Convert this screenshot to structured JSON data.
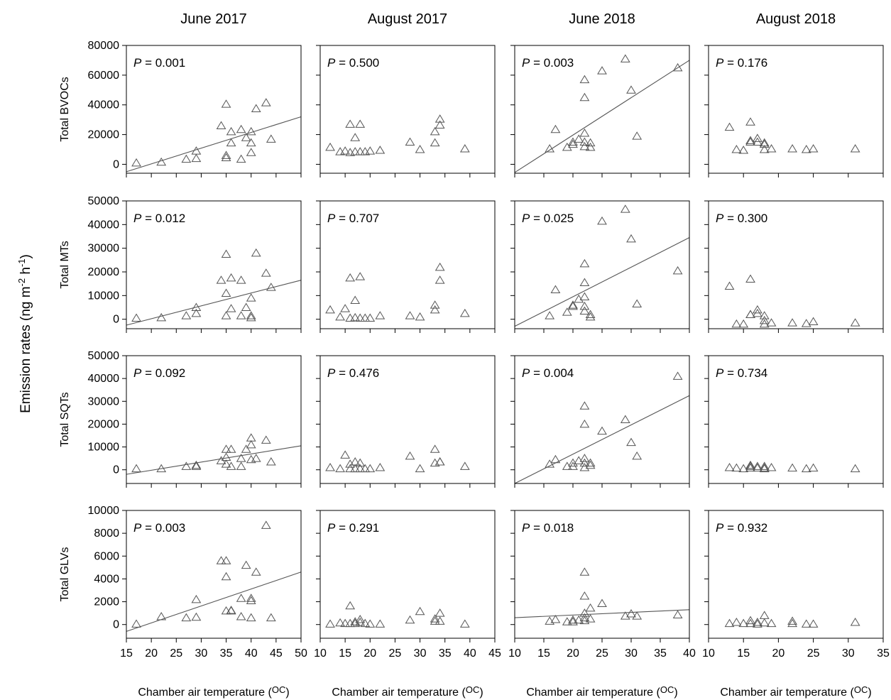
{
  "chart_data": {
    "type": "scatter",
    "ylabel": "Emission rates (ng m",
    "ylabel_sup1": "-2",
    "ylabel_mid": " h",
    "ylabel_sup2": "-1",
    "ylabel_end": ")",
    "xlabel": "Chamber air temperature (",
    "xlabel_unit": "OC",
    "xlabel_end": ")",
    "columns": [
      {
        "title": "June 2017",
        "xlim": [
          15,
          50
        ],
        "xticks": [
          15,
          20,
          25,
          30,
          35,
          40,
          45,
          50
        ]
      },
      {
        "title": "August 2017",
        "xlim": [
          10,
          45
        ],
        "xticks": [
          10,
          15,
          20,
          25,
          30,
          35,
          40,
          45
        ]
      },
      {
        "title": "June 2018",
        "xlim": [
          10,
          40
        ],
        "xticks": [
          10,
          15,
          20,
          25,
          30,
          35,
          40
        ]
      },
      {
        "title": "August 2018",
        "xlim": [
          10,
          35
        ],
        "xticks": [
          10,
          15,
          20,
          25,
          30,
          35
        ]
      }
    ],
    "rows": [
      {
        "label": "Total BVOCs",
        "ylim": [
          -6000,
          80000
        ],
        "yticks": [
          0,
          20000,
          40000,
          60000,
          80000
        ]
      },
      {
        "label": "Total MTs",
        "ylim": [
          -4000,
          50000
        ],
        "yticks": [
          0,
          10000,
          20000,
          30000,
          40000,
          50000
        ]
      },
      {
        "label": "Total SQTs",
        "ylim": [
          -6000,
          50000
        ],
        "yticks": [
          0,
          10000,
          20000,
          30000,
          40000,
          50000
        ]
      },
      {
        "label": "Total GLVs",
        "ylim": [
          -1200,
          10000
        ],
        "yticks": [
          0,
          2000,
          4000,
          6000,
          8000,
          10000
        ]
      }
    ],
    "panels": [
      {
        "row": 0,
        "col": 0,
        "p_label": "P",
        "p_value": "= 0.001",
        "x": [
          17,
          22,
          27,
          29,
          29,
          34,
          35,
          35,
          35,
          36,
          36,
          38,
          38,
          39,
          40,
          40,
          40,
          41,
          43,
          44
        ],
        "y": [
          1000,
          1500,
          3500,
          4000,
          9000,
          26000,
          40500,
          6000,
          4500,
          22000,
          14500,
          3500,
          23500,
          18000,
          22000,
          8000,
          14500,
          37500,
          41500,
          17000
        ],
        "fit": [
          [
            15,
            -5000
          ],
          [
            50,
            32000
          ]
        ]
      },
      {
        "row": 0,
        "col": 1,
        "p_label": "P",
        "p_value": "= 0.500",
        "x": [
          12,
          14,
          15,
          16,
          16,
          17,
          17,
          18,
          18,
          19,
          20,
          22,
          28,
          30,
          33,
          33,
          34,
          34,
          39
        ],
        "y": [
          11500,
          8500,
          9000,
          27000,
          8000,
          18000,
          8500,
          27000,
          8500,
          8500,
          9000,
          9500,
          15000,
          10000,
          14500,
          22000,
          26500,
          30500,
          10500
        ],
        "fit": null
      },
      {
        "row": 0,
        "col": 2,
        "p_label": "P",
        "p_value": "= 0.003",
        "x": [
          16,
          17,
          19,
          20,
          20,
          21,
          22,
          22,
          22,
          22,
          22,
          23,
          23,
          25,
          29,
          30,
          31,
          38
        ],
        "y": [
          10500,
          23500,
          11500,
          15000,
          13500,
          17000,
          57000,
          45000,
          21000,
          15000,
          12000,
          14500,
          11500,
          63000,
          71000,
          50000,
          19000,
          65000
        ],
        "fit": [
          [
            10,
            -5500
          ],
          [
            40,
            70000
          ]
        ]
      },
      {
        "row": 0,
        "col": 3,
        "p_label": "P",
        "p_value": "= 0.176",
        "x": [
          13,
          14,
          15,
          16,
          16,
          16,
          17,
          17,
          18,
          18,
          18,
          19,
          22,
          24,
          25,
          31
        ],
        "y": [
          25000,
          10000,
          9500,
          15000,
          28500,
          16000,
          17500,
          15000,
          14500,
          13500,
          10000,
          10500,
          10500,
          10000,
          10500,
          10500
        ],
        "fit": null
      },
      {
        "row": 1,
        "col": 0,
        "p_label": "P",
        "p_value": "= 0.012",
        "x": [
          17,
          22,
          27,
          29,
          29,
          34,
          35,
          35,
          35,
          36,
          36,
          38,
          38,
          39,
          40,
          40,
          40,
          41,
          43,
          44
        ],
        "y": [
          500,
          700,
          1500,
          5000,
          2500,
          16500,
          27500,
          11000,
          1500,
          17500,
          4500,
          1500,
          16500,
          5000,
          9000,
          1500,
          700,
          28000,
          19500,
          13500
        ],
        "fit": [
          [
            15,
            -2500
          ],
          [
            50,
            16500
          ]
        ]
      },
      {
        "row": 1,
        "col": 1,
        "p_label": "P",
        "p_value": "= 0.707",
        "x": [
          12,
          14,
          15,
          16,
          16,
          17,
          17,
          18,
          18,
          19,
          20,
          22,
          28,
          30,
          33,
          33,
          34,
          34,
          39
        ],
        "y": [
          4000,
          1000,
          4500,
          17500,
          500,
          8000,
          700,
          18000,
          500,
          500,
          500,
          1500,
          1500,
          1000,
          4000,
          6000,
          16500,
          22000,
          2500
        ],
        "fit": null
      },
      {
        "row": 1,
        "col": 2,
        "p_label": "P",
        "p_value": "= 0.025",
        "x": [
          16,
          17,
          19,
          20,
          20,
          21,
          22,
          22,
          22,
          22,
          22,
          23,
          23,
          25,
          29,
          30,
          31,
          38
        ],
        "y": [
          1500,
          12500,
          3000,
          6000,
          5500,
          8500,
          23500,
          15500,
          9500,
          5500,
          3500,
          2000,
          1000,
          41500,
          46500,
          34000,
          6500,
          20500
        ],
        "fit": [
          [
            10,
            -3000
          ],
          [
            40,
            34500
          ]
        ]
      },
      {
        "row": 1,
        "col": 3,
        "p_label": "P",
        "p_value": "= 0.300",
        "x": [
          13,
          14,
          15,
          16,
          16,
          16,
          17,
          17,
          18,
          18,
          18,
          19,
          22,
          24,
          25,
          31
        ],
        "y": [
          14000,
          -2000,
          -2000,
          17000,
          2000,
          2000,
          4000,
          2500,
          1500,
          -500,
          -2000,
          -1500,
          -1500,
          -1800,
          -1000,
          -1500
        ],
        "fit": null
      },
      {
        "row": 2,
        "col": 0,
        "p_label": "P",
        "p_value": "= 0.092",
        "x": [
          17,
          22,
          27,
          29,
          29,
          34,
          35,
          35,
          35,
          36,
          36,
          38,
          38,
          39,
          40,
          40,
          40,
          41,
          43,
          44
        ],
        "y": [
          500,
          500,
          1500,
          1500,
          2000,
          4000,
          9000,
          5500,
          2500,
          9000,
          1500,
          1500,
          5000,
          9000,
          14000,
          11000,
          4500,
          5000,
          13000,
          3500
        ],
        "fit": [
          [
            15,
            -2000
          ],
          [
            50,
            10500
          ]
        ]
      },
      {
        "row": 2,
        "col": 1,
        "p_label": "P",
        "p_value": "= 0.476",
        "x": [
          12,
          14,
          15,
          16,
          16,
          17,
          17,
          18,
          18,
          19,
          20,
          22,
          28,
          30,
          33,
          33,
          34,
          34,
          39
        ],
        "y": [
          1000,
          500,
          6500,
          2500,
          500,
          3500,
          500,
          3000,
          500,
          500,
          500,
          1000,
          6000,
          500,
          9000,
          3000,
          3500,
          3500,
          1500
        ],
        "fit": null
      },
      {
        "row": 2,
        "col": 2,
        "p_label": "P",
        "p_value": "= 0.004",
        "x": [
          16,
          17,
          19,
          20,
          20,
          21,
          22,
          22,
          22,
          22,
          22,
          23,
          23,
          25,
          29,
          30,
          31,
          38
        ],
        "y": [
          2500,
          4500,
          1500,
          3000,
          1500,
          4000,
          28000,
          20000,
          5000,
          3000,
          1000,
          3000,
          2000,
          17000,
          22000,
          12000,
          6000,
          41000
        ],
        "fit": [
          [
            10,
            -6000
          ],
          [
            40,
            32500
          ]
        ]
      },
      {
        "row": 2,
        "col": 3,
        "p_label": "P",
        "p_value": "= 0.734",
        "x": [
          13,
          14,
          15,
          16,
          16,
          16,
          17,
          17,
          18,
          18,
          18,
          19,
          22,
          24,
          25,
          31
        ],
        "y": [
          1000,
          800,
          500,
          1500,
          2000,
          800,
          1500,
          800,
          1500,
          800,
          500,
          1000,
          800,
          500,
          800,
          500
        ],
        "fit": null
      },
      {
        "row": 3,
        "col": 0,
        "p_label": "P",
        "p_value": "= 0.003",
        "x": [
          17,
          22,
          27,
          29,
          29,
          34,
          35,
          35,
          35,
          36,
          36,
          38,
          38,
          39,
          40,
          40,
          40,
          41,
          43,
          44
        ],
        "y": [
          50,
          700,
          600,
          2200,
          650,
          5600,
          5600,
          4200,
          1200,
          1200,
          1250,
          700,
          2300,
          5200,
          2300,
          2100,
          600,
          4600,
          8700,
          600
        ],
        "fit": [
          [
            15,
            -600
          ],
          [
            50,
            4600
          ]
        ]
      },
      {
        "row": 3,
        "col": 1,
        "p_label": "P",
        "p_value": "= 0.291",
        "x": [
          12,
          14,
          15,
          16,
          16,
          17,
          17,
          18,
          18,
          19,
          20,
          22,
          28,
          30,
          33,
          33,
          34,
          34,
          39
        ],
        "y": [
          50,
          150,
          100,
          1650,
          100,
          250,
          100,
          450,
          200,
          100,
          50,
          50,
          400,
          1150,
          500,
          300,
          1000,
          300,
          50
        ],
        "fit": null
      },
      {
        "row": 3,
        "col": 2,
        "p_label": "P",
        "p_value": "= 0.018",
        "x": [
          16,
          17,
          19,
          20,
          20,
          21,
          22,
          22,
          22,
          22,
          22,
          23,
          23,
          25,
          29,
          30,
          31,
          38
        ],
        "y": [
          300,
          450,
          250,
          400,
          250,
          400,
          4600,
          2500,
          1000,
          600,
          350,
          1450,
          500,
          1850,
          750,
          950,
          750,
          850
        ],
        "fit": [
          [
            10,
            600
          ],
          [
            40,
            1300
          ]
        ]
      },
      {
        "row": 3,
        "col": 3,
        "p_label": "P",
        "p_value": "= 0.932",
        "x": [
          13,
          14,
          15,
          16,
          16,
          17,
          17,
          18,
          18,
          19,
          22,
          22,
          24,
          25,
          31
        ],
        "y": [
          100,
          200,
          100,
          350,
          100,
          200,
          50,
          800,
          150,
          100,
          300,
          100,
          50,
          50,
          200
        ],
        "fit": null
      }
    ]
  }
}
